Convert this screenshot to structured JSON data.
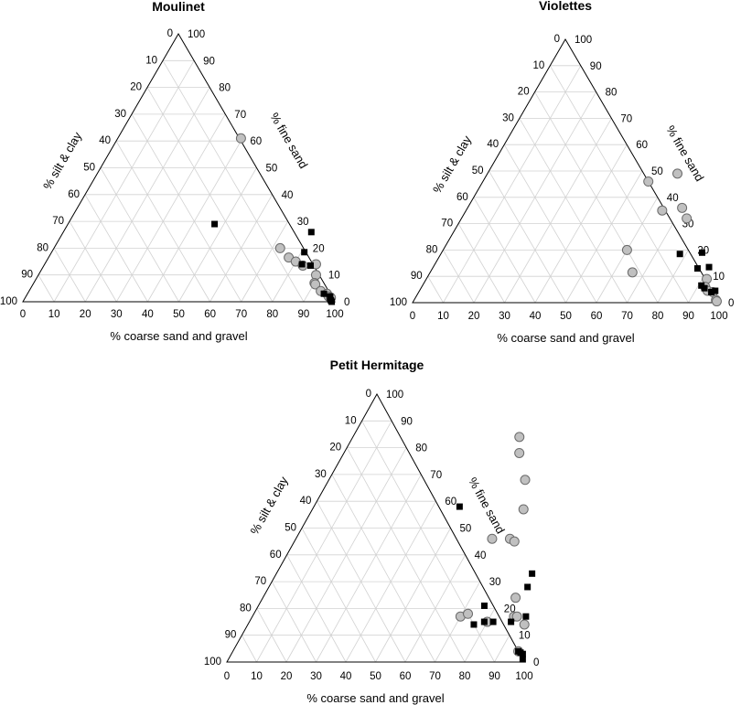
{
  "chart_data": [
    {
      "type": "ternary-scatter",
      "title": "Moulinet",
      "axis_labels": {
        "bottom": "% coarse sand and gravel",
        "left": "% silt & clay",
        "right": "% fine sand"
      },
      "ticks": [
        "0",
        "10",
        "20",
        "30",
        "40",
        "50",
        "60",
        "70",
        "80",
        "90",
        "100"
      ],
      "grid": true,
      "range": [
        0,
        100
      ],
      "series": [
        {
          "marker": "circle",
          "color": "#c0c0c0",
          "points": [
            [
              39.5,
              61
            ],
            [
              72.5,
              20
            ],
            [
              77,
              16.5
            ],
            [
              80,
              15
            ],
            [
              83,
              13.5
            ],
            [
              87,
              14
            ],
            [
              89,
              10
            ],
            [
              90,
              7
            ],
            [
              90.5,
              6.5
            ],
            [
              93.5,
              4
            ],
            [
              96,
              3
            ],
            [
              97,
              2
            ],
            [
              98,
              1.5
            ]
          ]
        },
        {
          "marker": "square",
          "color": "#000000",
          "points": [
            [
              47,
              29
            ],
            [
              79.5,
              26
            ],
            [
              81,
              18.5
            ],
            [
              82.5,
              14
            ],
            [
              85.5,
              13.5
            ],
            [
              95,
              3
            ],
            [
              97.5,
              2
            ],
            [
              98,
              1
            ],
            [
              98.5,
              0.5
            ],
            [
              99,
              0
            ]
          ]
        }
      ]
    },
    {
      "type": "ternary-scatter",
      "title": "Violettes",
      "axis_labels": {
        "bottom": "% coarse sand and gravel",
        "left": "% silt & clay",
        "right": "% fine sand"
      },
      "ticks": [
        "0",
        "10",
        "20",
        "30",
        "40",
        "50",
        "60",
        "70",
        "80",
        "90",
        "100"
      ],
      "grid": true,
      "range": [
        0,
        100
      ],
      "series": [
        {
          "marker": "circle",
          "color": "#c0c0c0",
          "points": [
            [
              54,
              46
            ],
            [
              62,
              49
            ],
            [
              64,
              35
            ],
            [
              70,
              36
            ],
            [
              73.5,
              32
            ],
            [
              60,
              20
            ],
            [
              66,
              11.5
            ],
            [
              91.5,
              9
            ],
            [
              92.5,
              6
            ],
            [
              94,
              4.5
            ],
            [
              96,
              4
            ],
            [
              98.5,
              1
            ],
            [
              99,
              0.5
            ]
          ]
        },
        {
          "marker": "square",
          "color": "#000000",
          "points": [
            [
              78,
              18.5
            ],
            [
              85,
              19
            ],
            [
              86.5,
              13
            ],
            [
              90,
              13.5
            ],
            [
              91,
              6.5
            ],
            [
              92.5,
              5.5
            ],
            [
              95.5,
              4
            ],
            [
              96.5,
              4.5
            ]
          ]
        }
      ]
    },
    {
      "type": "ternary-scatter",
      "title": "Petit Hermitage",
      "axis_labels": {
        "bottom": "% coarse sand and gravel",
        "left": "% silt & clay",
        "right": "% fine sand"
      },
      "ticks": [
        "0",
        "10",
        "20",
        "30",
        "40",
        "50",
        "60",
        "70",
        "80",
        "90",
        "100"
      ],
      "grid": true,
      "range": [
        0,
        100
      ],
      "series": [
        {
          "marker": "circle",
          "color": "#c0c0c0",
          "points": [
            [
              56,
              84
            ],
            [
              59,
              78
            ],
            [
              66,
              68
            ],
            [
              71,
              57
            ],
            [
              66,
              46
            ],
            [
              72,
              46
            ],
            [
              74,
              45
            ],
            [
              70,
              17
            ],
            [
              72,
              18
            ],
            [
              80,
              15
            ],
            [
              85,
              24
            ],
            [
              88,
              17
            ],
            [
              89,
              17
            ],
            [
              93,
              14
            ],
            [
              96,
              4
            ]
          ]
        },
        {
          "marker": "square",
          "color": "#000000",
          "points": [
            [
              49,
              58
            ],
            [
              76,
              21
            ],
            [
              79,
              15
            ],
            [
              82,
              15
            ],
            [
              86,
              33
            ],
            [
              87,
              28
            ],
            [
              88,
              15
            ],
            [
              76,
              14
            ],
            [
              92,
              17
            ],
            [
              96,
              4
            ],
            [
              97,
              3.5
            ],
            [
              98,
              3
            ],
            [
              99,
              1
            ]
          ]
        }
      ]
    }
  ]
}
